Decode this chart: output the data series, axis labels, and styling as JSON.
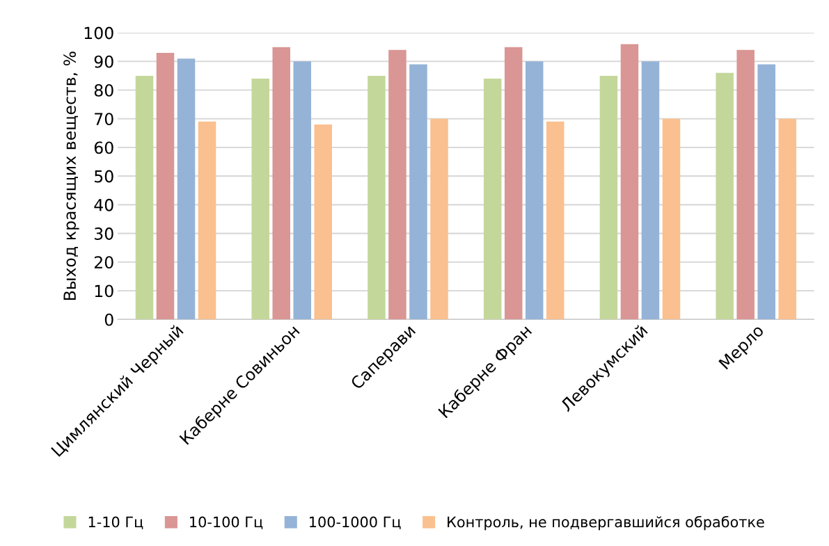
{
  "chart_data": {
    "type": "bar",
    "ylabel": "Выход красящих веществ, %",
    "categories": [
      "Цимлянский Черный",
      "Каберне Совиньон",
      "Саперави",
      "Каберне Фран",
      "Левокумский",
      "Мерло"
    ],
    "series": [
      {
        "name": "1-10 Гц",
        "color": "#c4d79b",
        "values": [
          85,
          84,
          85,
          84,
          85,
          86
        ]
      },
      {
        "name": "10-100 Гц",
        "color": "#d99694",
        "values": [
          93,
          95,
          94,
          95,
          96,
          94
        ]
      },
      {
        "name": "100-1000 Гц",
        "color": "#95b3d7",
        "values": [
          91,
          90,
          89,
          90,
          90,
          89
        ]
      },
      {
        "name": "Контроль, не подвергавшийся обработке",
        "color": "#fac08f",
        "values": [
          69,
          68,
          70,
          69,
          70,
          70
        ]
      }
    ],
    "ylim": [
      0,
      100
    ],
    "yticks": [
      0,
      10,
      20,
      30,
      40,
      50,
      60,
      70,
      80,
      90,
      100
    ],
    "grid": "y",
    "legend": "bottom"
  }
}
